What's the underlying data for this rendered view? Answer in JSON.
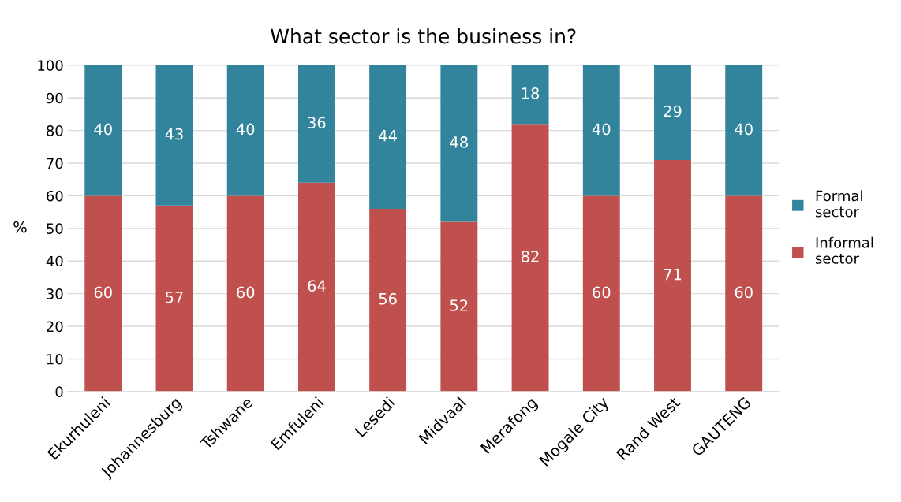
{
  "chart_data": {
    "type": "bar",
    "title": "What sector is the business in?",
    "ylabel": "%",
    "categories": [
      "Ekurhuleni",
      "Johannesburg",
      "Tshwane",
      "Emfuleni",
      "Lesedi",
      "Midvaal",
      "Merafong",
      "Mogale City",
      "Rand West",
      "GAUTENG"
    ],
    "stacked": true,
    "series": [
      {
        "name": "Informal sector",
        "color": "#c0504d",
        "values": [
          60,
          57,
          60,
          64,
          56,
          52,
          82,
          60,
          71,
          60
        ]
      },
      {
        "name": "Formal sector",
        "color": "#31849b",
        "values": [
          40,
          43,
          40,
          36,
          44,
          48,
          18,
          40,
          29,
          40
        ]
      }
    ],
    "ylim": [
      0,
      100
    ],
    "yticks": [
      0,
      10,
      20,
      30,
      40,
      50,
      60,
      70,
      80,
      90,
      100
    ],
    "grid": "y",
    "legend": "right",
    "data_labels": true
  }
}
